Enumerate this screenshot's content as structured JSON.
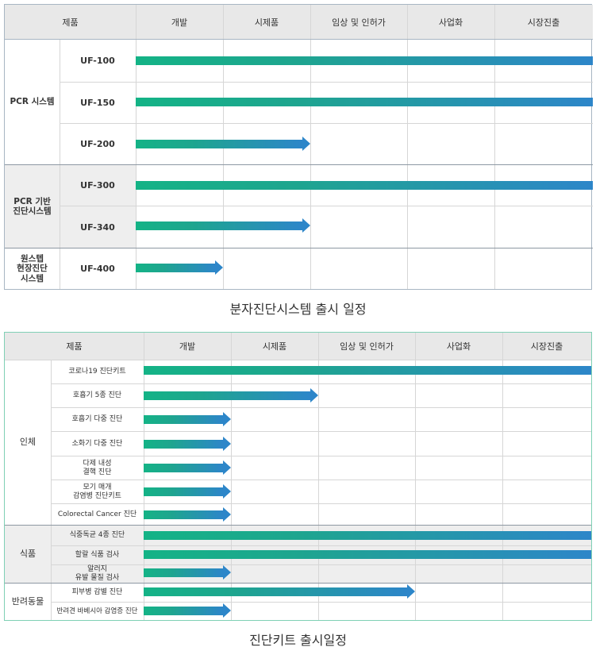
{
  "table1": {
    "headers": [
      "제품",
      "개발",
      "시제품",
      "임상 및 인허가",
      "사업화",
      "시장진출"
    ],
    "groups": [
      {
        "label": "PCR 시스템",
        "products": [
          "UF-100",
          "UF-150",
          "UF-200"
        ]
      },
      {
        "label": "PCR 기반\n진단시스템",
        "products": [
          "UF-300",
          "UF-340"
        ]
      },
      {
        "label": "원스텝\n현장진단\n시스템",
        "products": [
          "UF-400"
        ]
      }
    ],
    "stages_reached": [
      5,
      5,
      2,
      5,
      2,
      1
    ],
    "caption": "분자진단시스템 출시 일정"
  },
  "table2": {
    "headers": [
      "제품",
      "개발",
      "시제품",
      "임상 및 인허가",
      "사업화",
      "시장진출"
    ],
    "groups": [
      {
        "label": "인체",
        "products": [
          "코로나19 진단키트",
          "호흡기 5종 진단",
          "호흡기 다중 진단",
          "소화기 다중 진단",
          "다제 내성\n결핵 진단",
          "모기 매개\n감염병 진단키트",
          "Colorectal Cancer 진단"
        ]
      },
      {
        "label": "식품",
        "products": [
          "식중독균 4종 진단",
          "할랄 식품 검사",
          "알러지\n유발 물질 검사"
        ]
      },
      {
        "label": "반려동물",
        "products": [
          "피부병 감별 진단",
          "반려견 바베시아 감염증 진단"
        ]
      }
    ],
    "stages_reached": [
      5,
      2,
      1,
      1,
      1,
      1,
      1,
      5,
      5,
      1,
      3,
      1
    ],
    "caption": "진단키트 출시일정"
  },
  "colors": {
    "bar_start": "#14b386",
    "bar_end": "#2d86c9",
    "header_bg": "#e8e8e8",
    "group_bg": "#eeeeee",
    "table2_border": "#7fd0b5"
  }
}
